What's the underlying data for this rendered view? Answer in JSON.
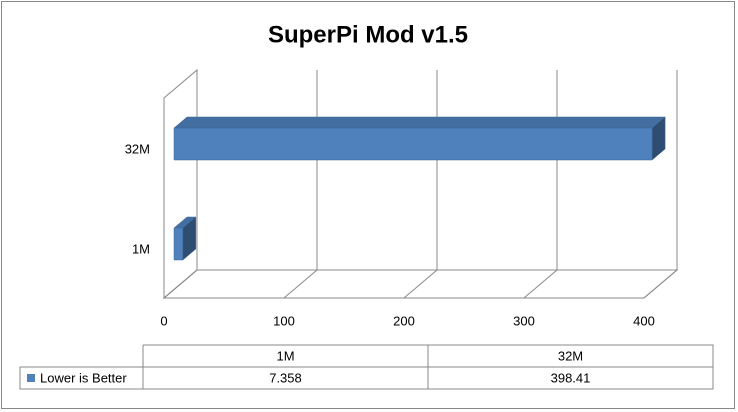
{
  "chart_data": {
    "type": "bar",
    "title": "SuperPi Mod v1.5",
    "categories": [
      "1M",
      "32M"
    ],
    "series": [
      {
        "name": "Lower is Better",
        "color": "#4f81bd",
        "values": [
          7.358,
          398.41
        ]
      }
    ],
    "xlim": [
      0,
      400
    ],
    "xticks": [
      0,
      100,
      200,
      300,
      400
    ],
    "grid": true
  }
}
